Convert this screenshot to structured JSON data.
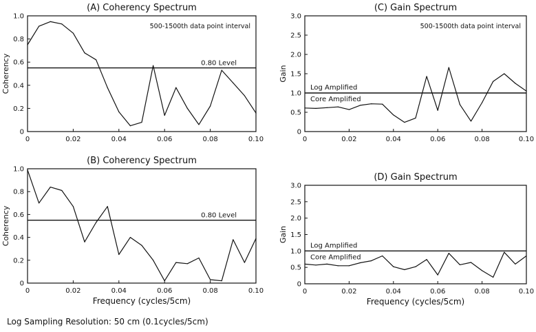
{
  "footnote": "Log Sampling Resolution: 50 cm (0.1cycles/5cm)",
  "chart_data": [
    {
      "id": "A",
      "type": "line",
      "title": "(A) Coherency Spectrum",
      "xlabel": "",
      "ylabel": "Coherency",
      "xlim": [
        0,
        0.1
      ],
      "ylim": [
        0,
        1.0
      ],
      "xticks": [
        "0",
        "0.02",
        "0.04",
        "0.06",
        "0.08",
        "0.10"
      ],
      "yticks": [
        "0",
        "0.2",
        "0.4",
        "0.6",
        "0.8",
        "1.0"
      ],
      "annotation": "500-1500th data point interval",
      "hlines": [
        {
          "y": 0.55,
          "label": "0.80 Level"
        }
      ],
      "series": [
        {
          "x": [
            0,
            0.005,
            0.01,
            0.015,
            0.02,
            0.025,
            0.03,
            0.035,
            0.04,
            0.045,
            0.05,
            0.055,
            0.06,
            0.065,
            0.07,
            0.075,
            0.08,
            0.085,
            0.09,
            0.095,
            0.1
          ],
          "values": [
            0.75,
            0.91,
            0.95,
            0.93,
            0.85,
            0.68,
            0.62,
            0.38,
            0.17,
            0.05,
            0.08,
            0.57,
            0.14,
            0.38,
            0.2,
            0.06,
            0.22,
            0.53,
            0.42,
            0.31,
            0.16
          ]
        }
      ]
    },
    {
      "id": "C",
      "type": "line",
      "title": "(C) Gain Spectrum",
      "xlabel": "",
      "ylabel": "Gain",
      "xlim": [
        0,
        0.1
      ],
      "ylim": [
        0,
        3.0
      ],
      "xticks": [
        "0",
        "0.02",
        "0.04",
        "0.06",
        "0.08",
        "0.10"
      ],
      "yticks": [
        "0",
        "0.5",
        "1.0",
        "1.5",
        "2.0",
        "2.5",
        "3.0"
      ],
      "annotation": "500-1500th data point interval",
      "hlines": [
        {
          "y": 1.0,
          "label_above": "Log Amplified",
          "label_below": "Core Amplified"
        }
      ],
      "series": [
        {
          "x": [
            0,
            0.005,
            0.01,
            0.015,
            0.02,
            0.025,
            0.03,
            0.035,
            0.04,
            0.045,
            0.05,
            0.055,
            0.06,
            0.065,
            0.07,
            0.075,
            0.08,
            0.085,
            0.09,
            0.095,
            0.1
          ],
          "values": [
            0.61,
            0.6,
            0.62,
            0.64,
            0.57,
            0.68,
            0.72,
            0.71,
            0.43,
            0.24,
            0.35,
            1.43,
            0.55,
            1.66,
            0.7,
            0.27,
            0.75,
            1.3,
            1.5,
            1.25,
            1.05
          ]
        }
      ]
    },
    {
      "id": "B",
      "type": "line",
      "title": "(B) Coherency Spectrum",
      "xlabel": "Frequency (cycles/5cm)",
      "ylabel": "Coherency",
      "xlim": [
        0,
        0.1
      ],
      "ylim": [
        0,
        1.0
      ],
      "xticks": [
        "0",
        "0.02",
        "0.04",
        "0.06",
        "0.08",
        "0.10"
      ],
      "yticks": [
        "0",
        "0.2",
        "0.4",
        "0.6",
        "0.8",
        "1.0"
      ],
      "annotation": "",
      "hlines": [
        {
          "y": 0.55,
          "label": "0.80 Level"
        }
      ],
      "series": [
        {
          "x": [
            0,
            0.005,
            0.01,
            0.015,
            0.02,
            0.025,
            0.03,
            0.035,
            0.04,
            0.045,
            0.05,
            0.055,
            0.06,
            0.065,
            0.07,
            0.075,
            0.08,
            0.085,
            0.09,
            0.095,
            0.1
          ],
          "values": [
            0.99,
            0.7,
            0.84,
            0.81,
            0.67,
            0.36,
            0.53,
            0.67,
            0.25,
            0.4,
            0.33,
            0.2,
            0.02,
            0.18,
            0.17,
            0.22,
            0.03,
            0.02,
            0.38,
            0.18,
            0.39
          ]
        }
      ]
    },
    {
      "id": "D",
      "type": "line",
      "title": "(D) Gain Spectrum",
      "xlabel": "Frequency (cycles/5cm)",
      "ylabel": "Gain",
      "xlim": [
        0,
        0.1
      ],
      "ylim": [
        0,
        3.0
      ],
      "xticks": [
        "0",
        "0.02",
        "0.04",
        "0.06",
        "0.08",
        "0.10"
      ],
      "yticks": [
        "0",
        "0.5",
        "1.0",
        "1.5",
        "2.0",
        "2.5",
        "3.0"
      ],
      "annotation": "",
      "hlines": [
        {
          "y": 1.0,
          "label_above": "Log Amplified",
          "label_below": "Core Amplified"
        }
      ],
      "series": [
        {
          "x": [
            0,
            0.005,
            0.01,
            0.015,
            0.02,
            0.025,
            0.03,
            0.035,
            0.04,
            0.045,
            0.05,
            0.055,
            0.06,
            0.065,
            0.07,
            0.075,
            0.08,
            0.085,
            0.09,
            0.095,
            0.1
          ],
          "values": [
            0.6,
            0.57,
            0.6,
            0.55,
            0.55,
            0.64,
            0.7,
            0.85,
            0.52,
            0.43,
            0.52,
            0.74,
            0.27,
            0.93,
            0.58,
            0.65,
            0.4,
            0.2,
            0.96,
            0.6,
            0.85
          ]
        }
      ]
    }
  ]
}
